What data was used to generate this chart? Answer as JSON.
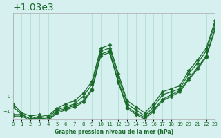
{
  "title": "Graphe pression niveau de la mer (hPa)",
  "bg_color": "#d6f0f0",
  "grid_color": "#aaddcc",
  "line_color": "#1a6b2a",
  "marker_color": "#1a6b2a",
  "xlim": [
    0,
    23
  ],
  "ylim": [
    1028.5,
    1035.5
  ],
  "yticks": [
    1029,
    1030
  ],
  "xticks": [
    0,
    1,
    2,
    3,
    4,
    5,
    6,
    7,
    8,
    9,
    10,
    11,
    12,
    13,
    14,
    15,
    16,
    17,
    18,
    19,
    20,
    21,
    22,
    23
  ],
  "series": [
    [
      1029.3,
      1028.8,
      1028.5,
      1028.7,
      1028.6,
      1029.1,
      1029.3,
      1029.5,
      1030.0,
      1030.8,
      1033.0,
      1033.2,
      1031.3,
      1029.5,
      1029.1,
      1028.7,
      1029.3,
      1030.1,
      1030.3,
      1030.5,
      1031.5,
      1032.2,
      1033.0,
      1034.8
    ],
    [
      1028.8,
      1028.8,
      1028.5,
      1028.6,
      1028.5,
      1029.0,
      1029.2,
      1029.4,
      1029.7,
      1030.5,
      1032.8,
      1033.0,
      1031.0,
      1029.3,
      1028.9,
      1028.6,
      1029.1,
      1029.8,
      1030.1,
      1030.4,
      1031.2,
      1031.9,
      1032.7,
      1034.5
    ],
    [
      1028.7,
      1028.7,
      1028.4,
      1028.6,
      1028.4,
      1028.9,
      1029.1,
      1029.3,
      1029.6,
      1030.4,
      1032.7,
      1032.9,
      1030.9,
      1029.2,
      1028.8,
      1028.5,
      1029.0,
      1029.7,
      1030.0,
      1030.3,
      1031.1,
      1031.8,
      1032.6,
      1034.4
    ],
    [
      1029.5,
      1028.9,
      1028.7,
      1028.8,
      1028.7,
      1029.2,
      1029.5,
      1029.7,
      1030.2,
      1031.0,
      1033.2,
      1033.4,
      1031.5,
      1029.7,
      1029.3,
      1028.9,
      1029.5,
      1030.3,
      1030.5,
      1030.7,
      1031.7,
      1032.4,
      1033.2,
      1035.0
    ]
  ]
}
